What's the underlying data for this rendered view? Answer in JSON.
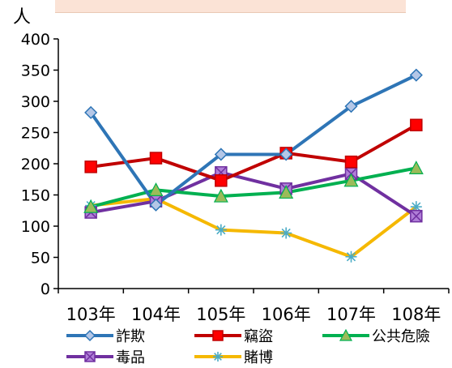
{
  "chart_data": {
    "type": "line",
    "title": "",
    "ylabel": "人",
    "xlabel": "",
    "ylim": [
      0,
      400
    ],
    "y_ticks": [
      0,
      50,
      100,
      150,
      200,
      250,
      300,
      350,
      400
    ],
    "categories": [
      "103年",
      "104年",
      "105年",
      "106年",
      "107年",
      "108年"
    ],
    "grid": false,
    "legend_position": "bottom",
    "series": [
      {
        "name": "詐欺",
        "values": [
          282,
          134,
          215,
          215,
          292,
          342
        ],
        "color": "#2e75b6",
        "marker": "diamond",
        "marker_fill": "#b4c7e7"
      },
      {
        "name": "竊盜",
        "values": [
          195,
          209,
          173,
          217,
          203,
          262
        ],
        "color": "#c00000",
        "marker": "square",
        "marker_fill": "#ff0000"
      },
      {
        "name": "公共危險",
        "values": [
          131,
          158,
          148,
          154,
          173,
          193
        ],
        "color": "#00b050",
        "marker": "triangle",
        "marker_fill": "#9bbb59"
      },
      {
        "name": "毒品",
        "values": [
          122,
          140,
          186,
          160,
          184,
          116
        ],
        "color": "#7030a0",
        "marker": "square-x",
        "marker_fill": "#b07fd8"
      },
      {
        "name": "賭博",
        "values": [
          133,
          144,
          94,
          89,
          51,
          131
        ],
        "color": "#f5b800",
        "marker": "asterisk",
        "marker_fill": "#4bacc6"
      }
    ]
  }
}
